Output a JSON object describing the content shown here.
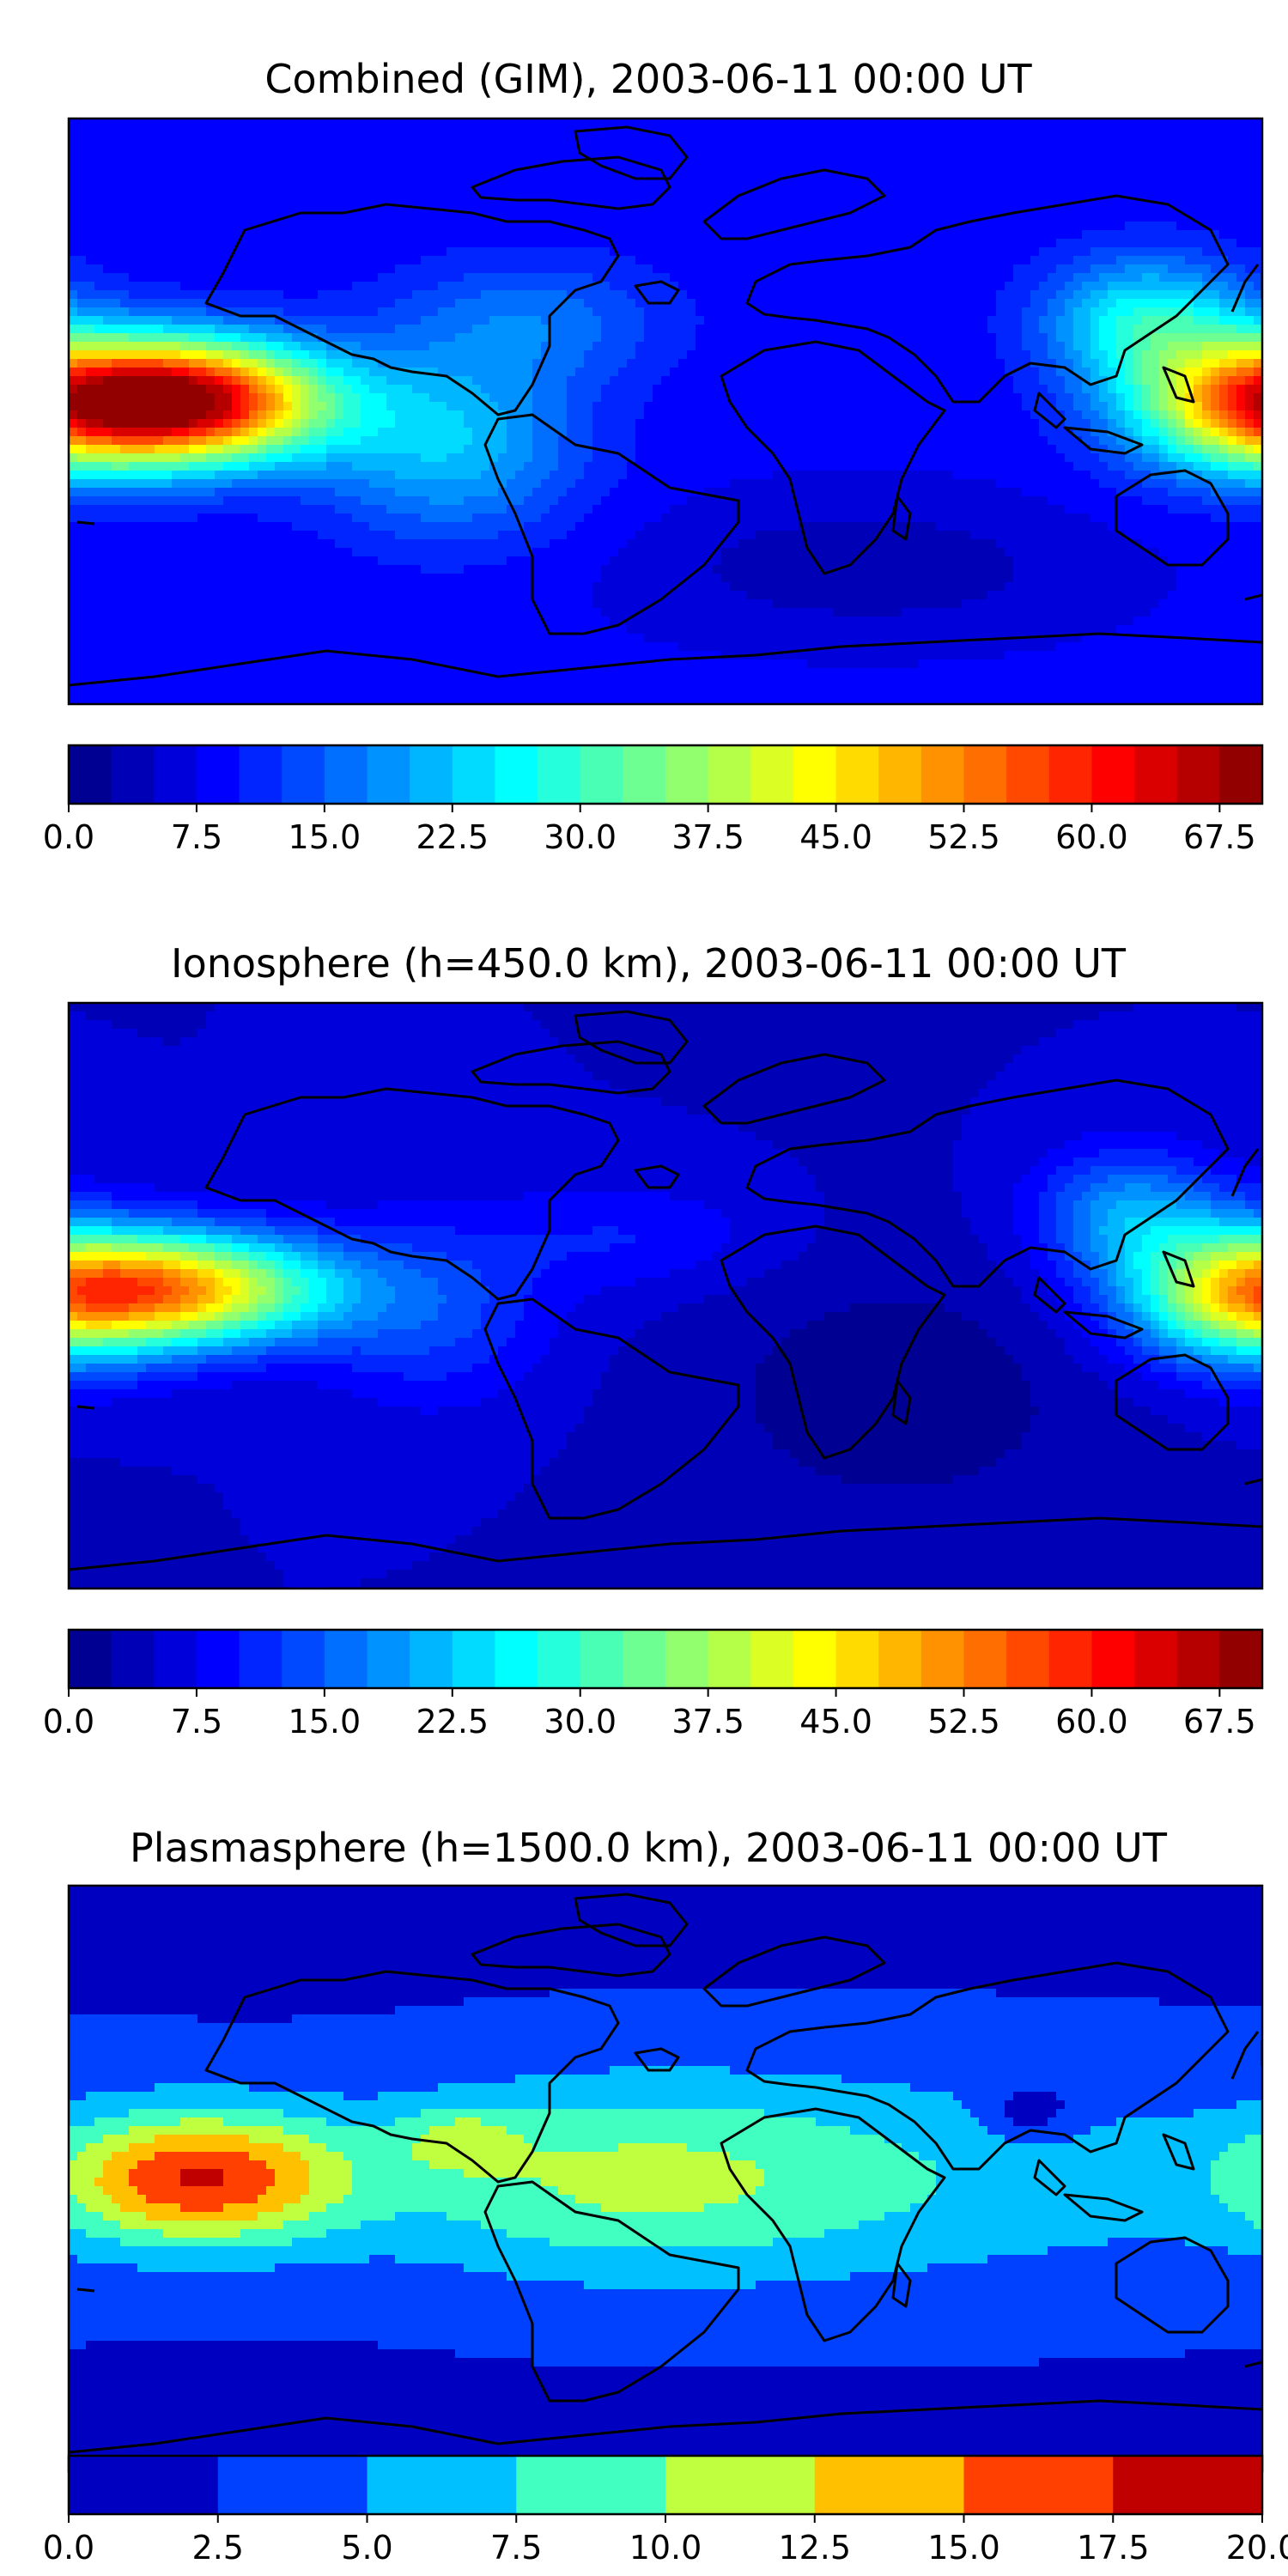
{
  "panels": [
    {
      "title": "Combined (GIM), 2003-06-11 00:00 UT",
      "colorbar": {
        "ticks": [
          "0.0",
          "7.5",
          "15.0",
          "22.5",
          "30.0",
          "37.5",
          "45.0",
          "52.5",
          "60.0",
          "67.5"
        ],
        "min": 0,
        "max": 70,
        "levels": 28
      },
      "field": {
        "base": 8,
        "features": [
          {
            "name": "pacific-equatorial-peak",
            "lon": -145,
            "lat": 3,
            "amp": 58,
            "slon": 30,
            "slat": 13
          },
          {
            "name": "west-pacific-crest",
            "lon": 175,
            "lat": 2,
            "amp": 30,
            "slon": 26,
            "slat": 15
          },
          {
            "name": "east-asia-anomaly",
            "lon": 145,
            "lat": 28,
            "amp": 18,
            "slon": 22,
            "slat": 14
          },
          {
            "name": "south-america-band",
            "lon": -65,
            "lat": -10,
            "amp": 14,
            "slon": 28,
            "slat": 20
          },
          {
            "name": "north-atlantic-band",
            "lon": -40,
            "lat": 28,
            "amp": 8,
            "slon": 30,
            "slat": 14
          },
          {
            "name": "south-indian-minimum",
            "lon": 60,
            "lat": -48,
            "amp": -5,
            "slon": 45,
            "slat": 14
          }
        ]
      }
    },
    {
      "title": "Ionosphere  (h=450.0 km), 2003-06-11 00:00 UT",
      "colorbar": {
        "ticks": [
          "0.0",
          "7.5",
          "15.0",
          "22.5",
          "30.0",
          "37.5",
          "45.0",
          "52.5",
          "60.0",
          "67.5"
        ],
        "min": 0,
        "max": 70,
        "levels": 28
      },
      "field": {
        "base": 5,
        "features": [
          {
            "name": "pacific-equatorial-peak",
            "lon": -145,
            "lat": 2,
            "amp": 40,
            "slon": 32,
            "slat": 12
          },
          {
            "name": "west-pacific-crest",
            "lon": 175,
            "lat": 0,
            "amp": 30,
            "slon": 25,
            "slat": 15
          },
          {
            "name": "east-asia-anomaly",
            "lon": 140,
            "lat": 25,
            "amp": 14,
            "slon": 20,
            "slat": 14
          },
          {
            "name": "south-america-band",
            "lon": -70,
            "lat": -5,
            "amp": 8,
            "slon": 25,
            "slat": 20
          },
          {
            "name": "sahara-band",
            "lon": -10,
            "lat": 18,
            "amp": 5,
            "slon": 30,
            "slat": 12
          },
          {
            "name": "indian-ocean-minimum",
            "lon": 70,
            "lat": -30,
            "amp": -4,
            "slon": 45,
            "slat": 30
          }
        ]
      }
    },
    {
      "title": "Plasmasphere (h=1500.0 km), 2003-06-11 00:00 UT",
      "colorbar": {
        "ticks": [
          "0.0",
          "2.5",
          "5.0",
          "7.5",
          "10.0",
          "12.5",
          "15.0",
          "17.5",
          "20.0"
        ],
        "min": 0,
        "max": 20,
        "levels": 8
      },
      "field": {
        "base": 2.2,
        "features": [
          {
            "name": "east-pacific-peak",
            "lon": -140,
            "lat": 0,
            "amp": 13.5,
            "slon": 30,
            "slat": 14
          },
          {
            "name": "atlantic-africa-belt",
            "lon": -15,
            "lat": 0,
            "amp": 7.5,
            "slon": 60,
            "slat": 22
          },
          {
            "name": "brazil-secondary-peak",
            "lon": -62,
            "lat": 12,
            "amp": 4.5,
            "slon": 13,
            "slat": 7
          },
          {
            "name": "indo-pacific-band",
            "lon": 110,
            "lat": 0,
            "amp": 3.5,
            "slon": 80,
            "slat": 25
          },
          {
            "name": "china-sea-minimum",
            "lon": 110,
            "lat": 20,
            "amp": -4,
            "slon": 10,
            "slat": 6
          }
        ]
      }
    }
  ],
  "colormap": [
    "#000080",
    "#0000ff",
    "#0080ff",
    "#00ffff",
    "#80ff80",
    "#ffff00",
    "#ff8000",
    "#ff0000",
    "#800000"
  ],
  "coastline_color": "#000000"
}
